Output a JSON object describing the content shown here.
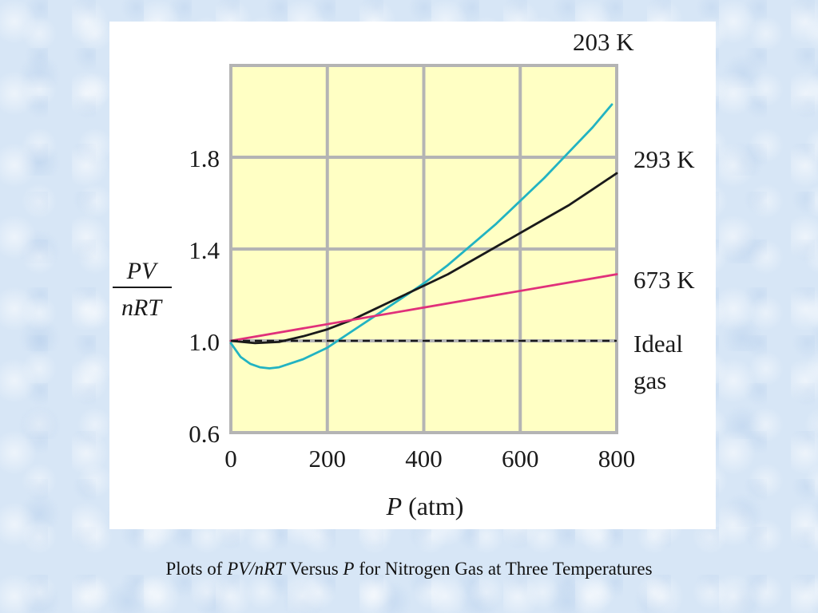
{
  "caption": {
    "prefix": "Plots of ",
    "italic1": "PV/nRT",
    "middle": " Versus ",
    "italic2": "P",
    "suffix": " for Nitrogen Gas at Three Temperatures"
  },
  "chart_data": {
    "type": "line",
    "xlabel_var": "P",
    "xlabel_unit": "(atm)",
    "ylabel_num": "PV",
    "ylabel_den": "nRT",
    "xlim": [
      0,
      800
    ],
    "ylim": [
      0.6,
      2.2
    ],
    "xticks": [
      0,
      200,
      400,
      600,
      800
    ],
    "xtick_labels": [
      "0",
      "200",
      "400",
      "600",
      "800"
    ],
    "yticks": [
      0.6,
      1.0,
      1.4,
      1.8
    ],
    "ytick_labels": [
      "0.6",
      "1.0",
      "1.4",
      "1.8"
    ],
    "grid_x": [
      200,
      400,
      600
    ],
    "grid_y": [
      1.0,
      1.4,
      1.8
    ],
    "grid": true,
    "plot_background": "#ffffc4",
    "grid_color": "#b4b4b4",
    "series": [
      {
        "name": "203 K",
        "color": "#22b3c2",
        "label_at_end": true,
        "x": [
          0,
          20,
          40,
          60,
          80,
          100,
          150,
          200,
          250,
          300,
          350,
          400,
          450,
          500,
          550,
          600,
          650,
          700,
          750,
          790
        ],
        "y": [
          0.99,
          0.93,
          0.9,
          0.885,
          0.88,
          0.885,
          0.92,
          0.97,
          1.04,
          1.11,
          1.18,
          1.25,
          1.33,
          1.42,
          1.51,
          1.61,
          1.71,
          1.82,
          1.93,
          2.03
        ]
      },
      {
        "name": "293 K",
        "color": "#1a1a1a",
        "label_at_end": true,
        "x": [
          0,
          50,
          100,
          150,
          200,
          250,
          300,
          350,
          400,
          450,
          500,
          550,
          600,
          650,
          700,
          750,
          800
        ],
        "y": [
          1.0,
          0.99,
          0.995,
          1.02,
          1.05,
          1.09,
          1.14,
          1.19,
          1.24,
          1.29,
          1.35,
          1.41,
          1.47,
          1.53,
          1.59,
          1.66,
          1.73
        ]
      },
      {
        "name": "673 K",
        "color": "#e0307a",
        "label_at_end": true,
        "x": [
          0,
          800
        ],
        "y": [
          1.0,
          1.29
        ]
      },
      {
        "name": "Ideal gas",
        "label_line1": "Ideal",
        "label_line2": "gas",
        "color": "#1a1a1a",
        "dashed": true,
        "label_at_end": true,
        "x": [
          0,
          800
        ],
        "y": [
          1.0,
          1.0
        ]
      }
    ]
  }
}
